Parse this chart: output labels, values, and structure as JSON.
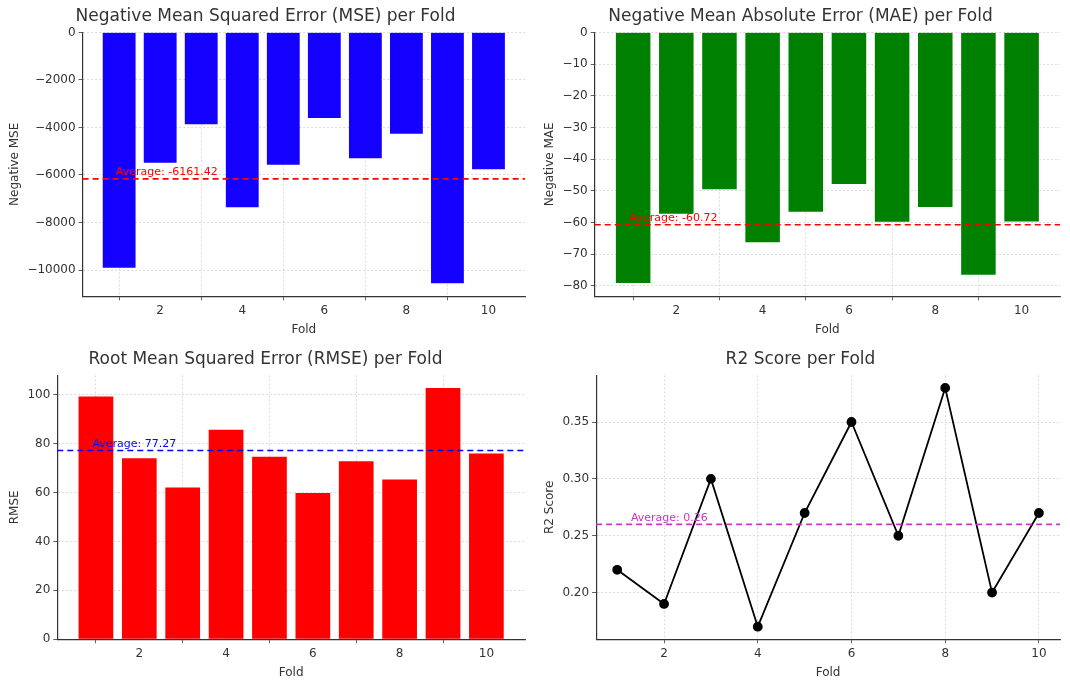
{
  "chart_data": [
    {
      "type": "bar",
      "title": "Negative Mean Squared Error (MSE) per Fold",
      "xlabel": "Fold",
      "ylabel": "Negative MSE",
      "x": [
        1,
        2,
        3,
        4,
        5,
        6,
        7,
        8,
        9,
        10
      ],
      "color": "#1400ff",
      "values": [
        -9900,
        -5480,
        -3860,
        -7360,
        -5570,
        -3600,
        -5300,
        -4260,
        -10550,
        -5760
      ],
      "xlim": [
        0.11,
        10.89
      ],
      "xticks": [
        2,
        4,
        6,
        8,
        10
      ],
      "ylim": [
        -11100,
        0
      ],
      "yticks": [
        {
          "value": -10000,
          "label": "−10000"
        },
        {
          "value": -8000,
          "label": "−8000"
        },
        {
          "value": -6000,
          "label": "−6000"
        },
        {
          "value": -4000,
          "label": "−4000"
        },
        {
          "value": -2000,
          "label": "−2000"
        },
        0
      ],
      "grid": true,
      "legend": false,
      "ref_lines": [
        {
          "axis": "y",
          "value": -6161.42,
          "label": "Average: -6161.42",
          "color": "#ff0000",
          "line_style": "dashed"
        }
      ]
    },
    {
      "type": "bar",
      "title": "Negative Mean Absolute Error (MAE) per Fold",
      "xlabel": "Fold",
      "ylabel": "Negative MAE",
      "x": [
        1,
        2,
        3,
        4,
        5,
        6,
        7,
        8,
        9,
        10
      ],
      "color": "#008000",
      "values": [
        -79.1,
        -57.3,
        -49.5,
        -66.3,
        -56.6,
        -47.9,
        -59.8,
        -55.1,
        -76.5,
        -59.7
      ],
      "xlim": [
        0.11,
        10.89
      ],
      "xticks": [
        2,
        4,
        6,
        8,
        10
      ],
      "ylim": [
        -83.3,
        0
      ],
      "yticks": [
        {
          "value": -80,
          "label": "−80"
        },
        {
          "value": -70,
          "label": "−70"
        },
        {
          "value": -60,
          "label": "−60"
        },
        {
          "value": -50,
          "label": "−50"
        },
        {
          "value": -40,
          "label": "−40"
        },
        {
          "value": -30,
          "label": "−30"
        },
        {
          "value": -20,
          "label": "−20"
        },
        {
          "value": -10,
          "label": "−10"
        },
        0
      ],
      "grid": true,
      "legend": false,
      "ref_lines": [
        {
          "axis": "y",
          "value": -60.72,
          "label": "Average: -60.72",
          "color": "#ff0000",
          "line_style": "dashed"
        }
      ]
    },
    {
      "type": "bar",
      "title": "Root Mean Squared Error (RMSE) per Fold",
      "xlabel": "Fold",
      "ylabel": "RMSE",
      "x": [
        1,
        2,
        3,
        4,
        5,
        6,
        7,
        8,
        9,
        10
      ],
      "color": "#ff0000",
      "values": [
        99.4,
        74.1,
        62.1,
        85.8,
        74.7,
        59.9,
        72.9,
        65.4,
        102.8,
        76.0
      ],
      "xlim": [
        0.11,
        10.89
      ],
      "xticks": [
        2,
        4,
        6,
        8,
        10
      ],
      "ylim": [
        0,
        108
      ],
      "yticks": [
        0,
        20,
        40,
        60,
        80,
        100
      ],
      "grid": true,
      "legend": false,
      "ref_lines": [
        {
          "axis": "y",
          "value": 77.27,
          "label": "Average: 77.27",
          "color": "#0000ff",
          "line_style": "dashed"
        }
      ]
    },
    {
      "type": "line",
      "title": "R2 Score per Fold",
      "xlabel": "Fold",
      "ylabel": "R2 Score",
      "x": [
        1,
        2,
        3,
        4,
        5,
        6,
        7,
        8,
        9,
        10
      ],
      "color": "#000000",
      "marker": "circle",
      "line_style": "solid",
      "values": [
        0.22,
        0.19,
        0.3,
        0.17,
        0.27,
        0.35,
        0.25,
        0.38,
        0.2,
        0.27
      ],
      "xlim": [
        0.55,
        10.45
      ],
      "xticks": [
        2,
        4,
        6,
        8,
        10
      ],
      "ylim": [
        0.159,
        0.391
      ],
      "yticks": [
        {
          "value": 0.2,
          "label": "0.20"
        },
        0.25,
        {
          "value": 0.3,
          "label": "0.30"
        },
        0.35
      ],
      "grid": true,
      "legend": false,
      "ref_lines": [
        {
          "axis": "y",
          "value": 0.26,
          "label": "Average: 0.26",
          "color": "#cc33cc",
          "line_style": "dashed"
        }
      ]
    }
  ]
}
